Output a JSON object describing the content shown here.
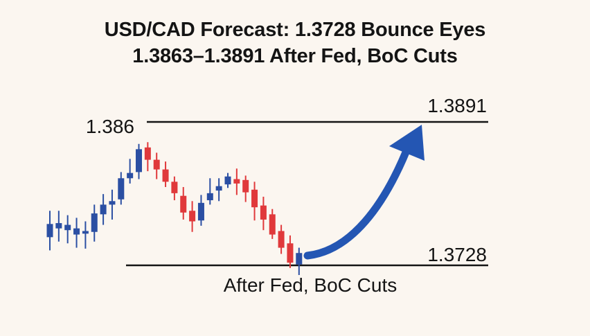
{
  "header": {
    "title_line1": "USD/CAD Forecast: 1.3728 Bounce Eyes",
    "title_line2": "1.3863–1.3891 After Fed, BoC Cuts"
  },
  "annotations": {
    "resistance_label": "1.3891",
    "support_label": "1.3728",
    "left_level_label": "1.386",
    "caption": "After Fed, BoC Cuts"
  },
  "colors": {
    "background": "#fbf6f0",
    "bullish": "#2b4fa3",
    "bearish": "#e0393b",
    "arrow": "#2456b3",
    "lines": "#141414"
  },
  "chart_data": {
    "type": "candlestick",
    "y_unit": "USD/CAD",
    "levels": {
      "resistance": 1.3891,
      "left_marker": 1.386,
      "support": 1.3728
    },
    "projection": {
      "from": 1.3728,
      "to": 1.3891,
      "direction": "up"
    },
    "candles": [
      {
        "o": 1.376,
        "h": 1.379,
        "l": 1.3745,
        "c": 1.3775
      },
      {
        "o": 1.377,
        "h": 1.379,
        "l": 1.3755,
        "c": 1.3776
      },
      {
        "o": 1.3768,
        "h": 1.3785,
        "l": 1.3753,
        "c": 1.3774
      },
      {
        "o": 1.3763,
        "h": 1.3782,
        "l": 1.3748,
        "c": 1.377
      },
      {
        "o": 1.3764,
        "h": 1.3778,
        "l": 1.3747,
        "c": 1.3767
      },
      {
        "o": 1.3766,
        "h": 1.3797,
        "l": 1.3755,
        "c": 1.3787
      },
      {
        "o": 1.3786,
        "h": 1.3809,
        "l": 1.3774,
        "c": 1.3797
      },
      {
        "o": 1.3797,
        "h": 1.3814,
        "l": 1.378,
        "c": 1.3801
      },
      {
        "o": 1.3803,
        "h": 1.3834,
        "l": 1.3797,
        "c": 1.3827
      },
      {
        "o": 1.3827,
        "h": 1.3849,
        "l": 1.3821,
        "c": 1.3833
      },
      {
        "o": 1.3834,
        "h": 1.3866,
        "l": 1.3826,
        "c": 1.386
      },
      {
        "o": 1.3862,
        "h": 1.3868,
        "l": 1.3835,
        "c": 1.3848
      },
      {
        "o": 1.3848,
        "h": 1.3856,
        "l": 1.3826,
        "c": 1.3837
      },
      {
        "o": 1.3837,
        "h": 1.3846,
        "l": 1.3817,
        "c": 1.3823
      },
      {
        "o": 1.3823,
        "h": 1.3829,
        "l": 1.3802,
        "c": 1.381
      },
      {
        "o": 1.3807,
        "h": 1.3817,
        "l": 1.378,
        "c": 1.3788
      },
      {
        "o": 1.379,
        "h": 1.3801,
        "l": 1.3766,
        "c": 1.3778
      },
      {
        "o": 1.3779,
        "h": 1.3808,
        "l": 1.3773,
        "c": 1.3799
      },
      {
        "o": 1.3802,
        "h": 1.3827,
        "l": 1.3797,
        "c": 1.381
      },
      {
        "o": 1.3813,
        "h": 1.3827,
        "l": 1.3801,
        "c": 1.3818
      },
      {
        "o": 1.382,
        "h": 1.3833,
        "l": 1.3816,
        "c": 1.3829
      },
      {
        "o": 1.3826,
        "h": 1.3838,
        "l": 1.3808,
        "c": 1.3821
      },
      {
        "o": 1.3825,
        "h": 1.383,
        "l": 1.38,
        "c": 1.3811
      },
      {
        "o": 1.3814,
        "h": 1.3823,
        "l": 1.3779,
        "c": 1.3794
      },
      {
        "o": 1.3796,
        "h": 1.3806,
        "l": 1.3768,
        "c": 1.378
      },
      {
        "o": 1.3786,
        "h": 1.3792,
        "l": 1.3758,
        "c": 1.3763
      },
      {
        "o": 1.3767,
        "h": 1.3774,
        "l": 1.3741,
        "c": 1.3748
      },
      {
        "o": 1.3753,
        "h": 1.3762,
        "l": 1.3725,
        "c": 1.3731
      },
      {
        "o": 1.3729,
        "h": 1.3748,
        "l": 1.3717,
        "c": 1.3742
      }
    ]
  }
}
